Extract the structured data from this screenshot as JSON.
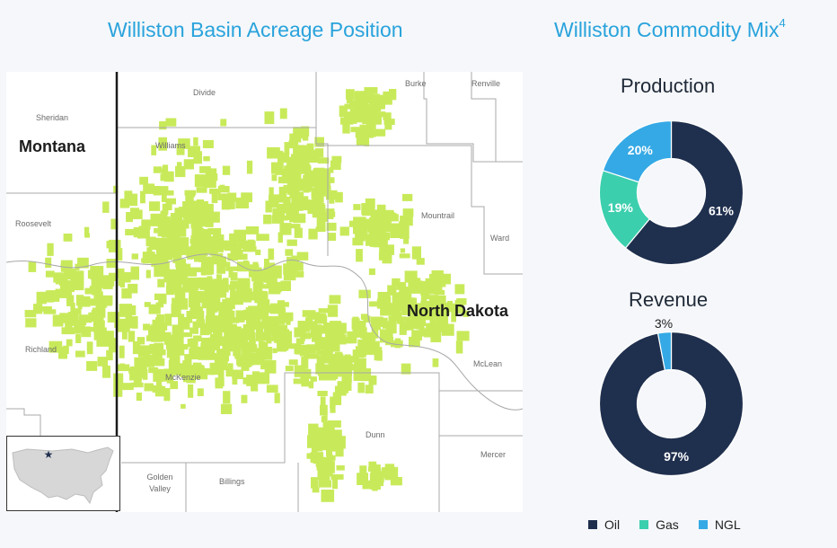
{
  "titles": {
    "map": "Williston Basin Acreage Position",
    "mix": "Williston Commodity Mix",
    "mix_sup": "4"
  },
  "map": {
    "states": [
      "Montana",
      "North Dakota"
    ],
    "counties": [
      "Sheridan",
      "Roosevelt",
      "Richland",
      "Divide",
      "Williams",
      "Burke",
      "Renville",
      "Mountrail",
      "Ward",
      "McKenzie",
      "McLean",
      "Dunn",
      "Mercer",
      "Golden Valley",
      "Billings"
    ],
    "acreage_color": "#c8ea5a",
    "inset_marker_icon": "star-icon"
  },
  "chart_data": [
    {
      "type": "pie",
      "title": "Production",
      "categories": [
        "Oil",
        "Gas",
        "NGL"
      ],
      "values": [
        61,
        19,
        20
      ],
      "labels": [
        "61%",
        "19%",
        "20%"
      ],
      "colors": [
        "#1f2f4e",
        "#3ccfae",
        "#35a9e5"
      ]
    },
    {
      "type": "pie",
      "title": "Revenue",
      "categories": [
        "Oil",
        "Gas",
        "NGL"
      ],
      "values": [
        97,
        0,
        3
      ],
      "labels": [
        "97%",
        "",
        "3%"
      ],
      "colors": [
        "#1f2f4e",
        "#3ccfae",
        "#35a9e5"
      ]
    }
  ],
  "legend": [
    {
      "label": "Oil",
      "color": "#1f2f4e"
    },
    {
      "label": "Gas",
      "color": "#3ccfae"
    },
    {
      "label": "NGL",
      "color": "#35a9e5"
    }
  ]
}
